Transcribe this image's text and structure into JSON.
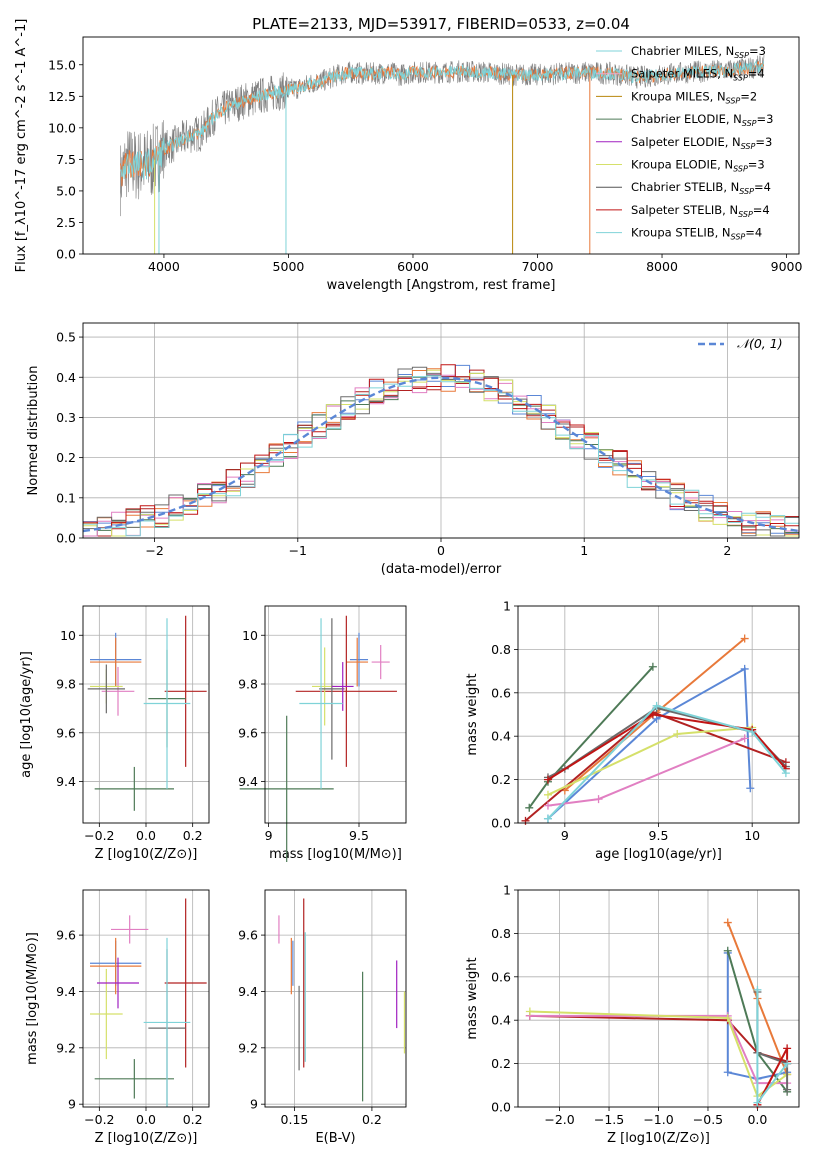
{
  "colors": [
    "#5b87d6",
    "#e8793a",
    "#4e7a57",
    "#b22222",
    "#e17fc2",
    "#d5e06a",
    "#6b6b6b",
    "#c01515",
    "#7fd3d8"
  ],
  "chart_data": [
    {
      "id": "spectrum",
      "type": "line",
      "title": "PLATE=2133, MJD=53917, FIBERID=0533, z=0.04",
      "xlabel": "wavelength [Angstrom, rest frame]",
      "ylabel": "Flux [f_λ10^-17 erg cm^-2 s^-1 A^-1]",
      "xlim": [
        3350,
        9100
      ],
      "ylim": [
        0,
        17.2
      ],
      "xticks": [
        4000,
        5000,
        6000,
        7000,
        8000,
        9000
      ],
      "yticks": [
        0.0,
        2.5,
        5.0,
        7.5,
        10.0,
        12.5,
        15.0
      ],
      "grid": false,
      "legend_position": "top-right",
      "legend": [
        {
          "name": "Chabrier MILES, N_SSP=3",
          "color": "#7fd3d8"
        },
        {
          "name": "Salpeter MILES, N_SSP=4",
          "color": "#f2a6c8"
        },
        {
          "name": "Kroupa MILES, N_SSP=2",
          "color": "#b8860b"
        },
        {
          "name": "Chabrier ELODIE, N_SSP=3",
          "color": "#4e7a57"
        },
        {
          "name": "Salpeter ELODIE, N_SSP=3",
          "color": "#a020c0"
        },
        {
          "name": "Kroupa ELODIE, N_SSP=3",
          "color": "#d5e06a"
        },
        {
          "name": "Chabrier STELIB, N_SSP=4",
          "color": "#555555"
        },
        {
          "name": "Salpeter STELIB, N_SSP=4",
          "color": "#c01515"
        },
        {
          "name": "Kroupa STELIB, N_SSP=4",
          "color": "#7fd3d8"
        }
      ],
      "continuum": [
        [
          3650,
          6.0
        ],
        [
          3700,
          7.2
        ],
        [
          3800,
          7.0
        ],
        [
          3900,
          7.2
        ],
        [
          4000,
          8.3
        ],
        [
          4100,
          8.8
        ],
        [
          4200,
          9.4
        ],
        [
          4300,
          9.6
        ],
        [
          4400,
          10.9
        ],
        [
          4500,
          11.6
        ],
        [
          4600,
          12.0
        ],
        [
          4700,
          12.3
        ],
        [
          4800,
          12.6
        ],
        [
          4900,
          12.8
        ],
        [
          5000,
          13.0
        ],
        [
          5100,
          13.2
        ],
        [
          5200,
          13.6
        ],
        [
          5300,
          13.8
        ],
        [
          5400,
          14.2
        ],
        [
          5500,
          14.4
        ],
        [
          5600,
          14.3
        ],
        [
          5700,
          14.3
        ],
        [
          5800,
          14.4
        ],
        [
          5900,
          14.2
        ],
        [
          6000,
          14.4
        ],
        [
          6200,
          14.4
        ],
        [
          6400,
          14.5
        ],
        [
          6600,
          14.4
        ],
        [
          6800,
          14.2
        ],
        [
          7000,
          14.2
        ],
        [
          7200,
          14.3
        ],
        [
          7400,
          14.4
        ],
        [
          7600,
          14.3
        ],
        [
          7800,
          14.0
        ],
        [
          8000,
          14.2
        ],
        [
          8200,
          14.4
        ],
        [
          8400,
          14.5
        ],
        [
          8600,
          14.6
        ],
        [
          8820,
          14.9
        ]
      ],
      "drops": [
        {
          "x": 3925,
          "color": "#d5e06a"
        },
        {
          "x": 3960,
          "color": "#7fd3d8"
        },
        {
          "x": 4980,
          "color": "#7fd3d8"
        },
        {
          "x": 6800,
          "color": "#b8860b"
        },
        {
          "x": 7420,
          "color": "#e8793a"
        }
      ]
    },
    {
      "id": "residuals",
      "type": "histogram",
      "xlabel": "(data-model)/error",
      "ylabel": "Normed distribution",
      "xlim": [
        -2.5,
        2.5
      ],
      "ylim": [
        0,
        0.535
      ],
      "xticks": [
        -2,
        -1,
        0,
        1,
        2
      ],
      "yticks": [
        0.0,
        0.1,
        0.2,
        0.3,
        0.4,
        0.5
      ],
      "grid": true,
      "legend_position": "top-right",
      "reference_curve": {
        "name": "𝒩(0, 1)",
        "color": "#5b87d6",
        "style": "dashed"
      },
      "bin_width": 0.1
    },
    {
      "id": "age-vs-Z",
      "type": "errorbar",
      "xlabel": "Z [log10(Z/Z⊙)]",
      "ylabel": "age [log10(age/yr)]",
      "xlim": [
        -0.27,
        0.27
      ],
      "ylim": [
        9.23,
        10.12
      ],
      "xticks": [
        -0.2,
        0.0,
        0.2
      ],
      "xtick_labels": [
        "−0.2",
        "0.0",
        "0.2"
      ],
      "yticks": [
        9.4,
        9.6,
        9.8,
        10.0
      ],
      "grid": true,
      "points": [
        {
          "x": -0.13,
          "y": 9.9,
          "xerr": 0.11,
          "yerr": 0.11,
          "color": "#5b87d6"
        },
        {
          "x": -0.13,
          "y": 9.89,
          "xerr": 0.11,
          "yerr": 0.1,
          "color": "#e8793a"
        },
        {
          "x": -0.05,
          "y": 9.37,
          "xerr": 0.17,
          "yerr": 0.09,
          "color": "#4e7a57"
        },
        {
          "x": 0.17,
          "y": 9.77,
          "xerr": 0.09,
          "yerr": 0.31,
          "color": "#b22222"
        },
        {
          "x": -0.12,
          "y": 9.77,
          "xerr": 0.07,
          "yerr": 0.1,
          "color": "#e17fc2"
        },
        {
          "x": -0.17,
          "y": 9.79,
          "xerr": 0.07,
          "yerr": 0.07,
          "color": "#d5e06a"
        },
        {
          "x": -0.17,
          "y": 9.78,
          "xerr": 0.08,
          "yerr": 0.1,
          "color": "#6b6b6b"
        },
        {
          "x": 0.09,
          "y": 9.74,
          "xerr": 0.08,
          "yerr": 0.2,
          "color": "#4e7a57"
        },
        {
          "x": 0.09,
          "y": 9.72,
          "xerr": 0.1,
          "yerr": 0.35,
          "color": "#7fd3d8"
        }
      ]
    },
    {
      "id": "age-vs-mass",
      "type": "errorbar",
      "xlabel": "mass [log10(M/M⊙)]",
      "xlim": [
        8.98,
        9.76
      ],
      "ylim": [
        9.23,
        10.12
      ],
      "xticks": [
        9.0,
        9.5
      ],
      "yticks": [
        9.4,
        9.6,
        9.8,
        10.0
      ],
      "grid": true,
      "points": [
        {
          "x": 9.5,
          "y": 9.9,
          "xerr": 0.05,
          "yerr": 0.11,
          "color": "#5b87d6"
        },
        {
          "x": 9.49,
          "y": 9.89,
          "xerr": 0.06,
          "yerr": 0.1,
          "color": "#e8793a"
        },
        {
          "x": 9.1,
          "y": 9.37,
          "xerr": 0.26,
          "yerr": 0.3,
          "color": "#4e7a57"
        },
        {
          "x": 9.43,
          "y": 9.77,
          "xerr": 0.28,
          "yerr": 0.31,
          "color": "#b22222"
        },
        {
          "x": 9.62,
          "y": 9.89,
          "xerr": 0.05,
          "yerr": 0.07,
          "color": "#e17fc2"
        },
        {
          "x": 9.31,
          "y": 9.79,
          "xerr": 0.07,
          "yerr": 0.16,
          "color": "#d5e06a"
        },
        {
          "x": 9.35,
          "y": 9.78,
          "xerr": 0.07,
          "yerr": 0.29,
          "color": "#6b6b6b"
        },
        {
          "x": 9.41,
          "y": 9.79,
          "xerr": 0.06,
          "yerr": 0.1,
          "color": "#a020c0"
        },
        {
          "x": 9.29,
          "y": 9.72,
          "xerr": 0.12,
          "yerr": 0.35,
          "color": "#7fd3d8"
        }
      ]
    },
    {
      "id": "weight-vs-age",
      "type": "line",
      "xlabel": "age [log10(age/yr)]",
      "ylabel": "mass weight",
      "xlim": [
        8.75,
        10.25
      ],
      "ylim": [
        0.0,
        1.0
      ],
      "xticks": [
        9.0,
        9.5,
        10.0
      ],
      "yticks": [
        0.0,
        0.2,
        0.4,
        0.6,
        0.8,
        1.0
      ],
      "grid": true,
      "series": [
        {
          "color": "#5b87d6",
          "x": [
            8.91,
            9.49,
            9.96,
            9.99
          ],
          "y": [
            0.02,
            0.48,
            0.71,
            0.16
          ]
        },
        {
          "color": "#e8793a",
          "x": [
            9.0,
            9.49,
            9.96
          ],
          "y": [
            0.15,
            0.51,
            0.85
          ]
        },
        {
          "color": "#4e7a57",
          "x": [
            8.81,
            8.91,
            9.47
          ],
          "y": [
            0.07,
            0.19,
            0.72
          ]
        },
        {
          "color": "#b22222",
          "x": [
            8.79,
            9.47,
            10.18
          ],
          "y": [
            0.01,
            0.51,
            0.28
          ]
        },
        {
          "color": "#e17fc2",
          "x": [
            8.91,
            9.18,
            9.96
          ],
          "y": [
            0.08,
            0.11,
            0.39
          ]
        },
        {
          "color": "#d5e06a",
          "x": [
            8.91,
            9.6,
            10.0
          ],
          "y": [
            0.13,
            0.41,
            0.44
          ]
        },
        {
          "color": "#6b6b6b",
          "x": [
            8.91,
            9.0,
            9.49,
            10.0,
            10.18
          ],
          "y": [
            0.21,
            0.25,
            0.53,
            0.42,
            0.26
          ]
        },
        {
          "color": "#c01515",
          "x": [
            8.91,
            9.47,
            10.0,
            10.18
          ],
          "y": [
            0.2,
            0.5,
            0.43,
            0.25
          ]
        },
        {
          "color": "#7fd3d8",
          "x": [
            8.91,
            9.49,
            10.0,
            10.18
          ],
          "y": [
            0.02,
            0.54,
            0.42,
            0.23
          ]
        }
      ]
    },
    {
      "id": "mass-vs-Z",
      "type": "errorbar",
      "xlabel": "Z [log10(Z/Z⊙)]",
      "ylabel": "mass [log10(M/M⊙)]",
      "xlim": [
        -0.27,
        0.27
      ],
      "ylim": [
        8.99,
        9.76
      ],
      "xticks": [
        -0.2,
        0.0,
        0.2
      ],
      "xtick_labels": [
        "−0.2",
        "0.0",
        "0.2"
      ],
      "yticks": [
        9.0,
        9.2,
        9.4,
        9.6
      ],
      "grid": true,
      "points": [
        {
          "x": -0.13,
          "y": 9.5,
          "xerr": 0.11,
          "yerr": 0.08,
          "color": "#5b87d6"
        },
        {
          "x": -0.13,
          "y": 9.49,
          "xerr": 0.11,
          "yerr": 0.1,
          "color": "#e8793a"
        },
        {
          "x": -0.05,
          "y": 9.09,
          "xerr": 0.17,
          "yerr": 0.07,
          "color": "#4e7a57"
        },
        {
          "x": 0.17,
          "y": 9.43,
          "xerr": 0.09,
          "yerr": 0.3,
          "color": "#b22222"
        },
        {
          "x": -0.07,
          "y": 9.62,
          "xerr": 0.08,
          "yerr": 0.05,
          "color": "#e17fc2"
        },
        {
          "x": -0.17,
          "y": 9.32,
          "xerr": 0.07,
          "yerr": 0.16,
          "color": "#d5e06a"
        },
        {
          "x": -0.12,
          "y": 9.43,
          "xerr": 0.09,
          "yerr": 0.09,
          "color": "#a020c0"
        },
        {
          "x": 0.09,
          "y": 9.27,
          "xerr": 0.08,
          "yerr": 0.28,
          "color": "#6b6b6b"
        },
        {
          "x": 0.09,
          "y": 9.29,
          "xerr": 0.1,
          "yerr": 0.3,
          "color": "#7fd3d8"
        }
      ]
    },
    {
      "id": "mass-vs-EBV",
      "type": "errorbar",
      "xlabel": "E(B-V)",
      "xlim": [
        0.131,
        0.222
      ],
      "ylim": [
        8.99,
        9.76
      ],
      "xticks": [
        0.15,
        0.2
      ],
      "yticks": [
        9.0,
        9.2,
        9.4,
        9.6
      ],
      "grid": true,
      "points": [
        {
          "x": 0.14,
          "y": 9.62,
          "yerr": 0.05,
          "color": "#e17fc2"
        },
        {
          "x": 0.148,
          "y": 9.49,
          "yerr": 0.1,
          "color": "#e8793a"
        },
        {
          "x": 0.149,
          "y": 9.5,
          "yerr": 0.08,
          "color": "#5b87d6"
        },
        {
          "x": 0.153,
          "y": 9.27,
          "yerr": 0.15,
          "color": "#6b6b6b"
        },
        {
          "x": 0.156,
          "y": 9.43,
          "yerr": 0.3,
          "color": "#b22222"
        },
        {
          "x": 0.157,
          "y": 9.38,
          "yerr": 0.23,
          "color": "#7fd3d8"
        },
        {
          "x": 0.194,
          "y": 9.24,
          "yerr": 0.23,
          "color": "#4e7a57"
        },
        {
          "x": 0.216,
          "y": 9.39,
          "yerr": 0.12,
          "color": "#a020c0"
        },
        {
          "x": 0.221,
          "y": 9.29,
          "yerr": 0.11,
          "color": "#d5e06a"
        }
      ]
    },
    {
      "id": "weight-vs-Z",
      "type": "line",
      "xlabel": "Z [log10(Z/Z⊙)]",
      "ylabel": "mass weight",
      "xlim": [
        -2.42,
        0.42
      ],
      "ylim": [
        0.0,
        1.0
      ],
      "xticks": [
        -2.0,
        -1.5,
        -1.0,
        -0.5,
        0.0
      ],
      "xtick_labels": [
        "−2.0",
        "−1.5",
        "−1.0",
        "−0.5",
        "0.0"
      ],
      "yticks": [
        0.0,
        0.2,
        0.4,
        0.6,
        0.8,
        1.0
      ],
      "grid": true,
      "series": [
        {
          "color": "#5b87d6",
          "x": [
            -0.3,
            -0.3,
            0.0,
            0.3
          ],
          "y": [
            0.71,
            0.16,
            0.13,
            0.16
          ]
        },
        {
          "color": "#e8793a",
          "x": [
            -0.3,
            0.0,
            0.3
          ],
          "y": [
            0.85,
            0.5,
            0.15
          ]
        },
        {
          "color": "#4e7a57",
          "x": [
            -0.3,
            0.0,
            0.3
          ],
          "y": [
            0.72,
            0.25,
            0.07
          ]
        },
        {
          "color": "#b22222",
          "x": [
            -2.3,
            -0.3,
            0.0,
            0.3
          ],
          "y": [
            0.42,
            0.4,
            0.25,
            0.21
          ]
        },
        {
          "color": "#e17fc2",
          "x": [
            -2.3,
            -0.3,
            0.0,
            0.3
          ],
          "y": [
            0.42,
            0.42,
            0.11,
            0.11
          ]
        },
        {
          "color": "#d5e06a",
          "x": [
            -2.3,
            -0.3,
            0.0,
            0.3
          ],
          "y": [
            0.44,
            0.41,
            0.05,
            0.15
          ]
        },
        {
          "color": "#6b6b6b",
          "x": [
            0.0,
            0.0,
            0.3,
            0.3
          ],
          "y": [
            0.53,
            0.25,
            0.2,
            0.08
          ]
        },
        {
          "color": "#c01515",
          "x": [
            0.0,
            0.3,
            0.3
          ],
          "y": [
            0.01,
            0.27,
            0.2
          ]
        },
        {
          "color": "#7fd3d8",
          "x": [
            0.0,
            0.0,
            0.3
          ],
          "y": [
            0.54,
            0.02,
            0.2
          ]
        }
      ]
    }
  ]
}
